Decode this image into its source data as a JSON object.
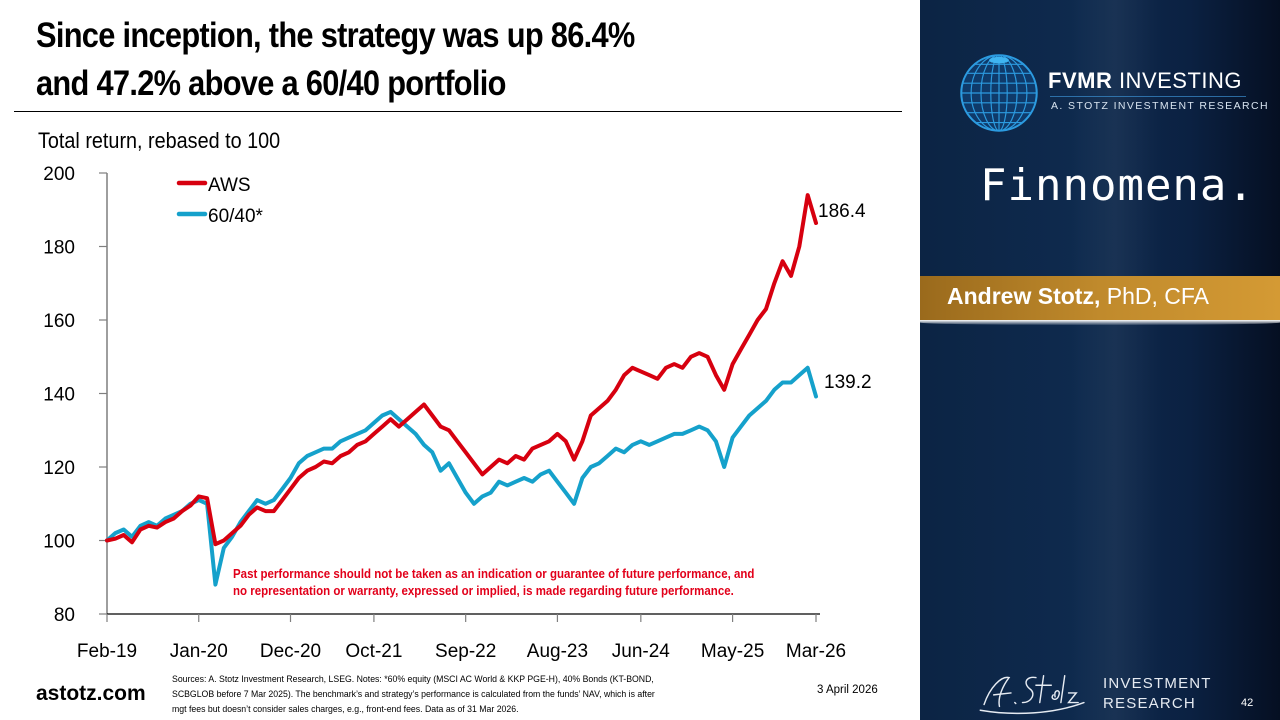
{
  "slide": {
    "title_line1": "Since inception, the strategy was up 86.4%",
    "title_line2": "and 47.2% above a 60/40 portfolio",
    "subtitle": "Total return, rebased to 100",
    "disclaimer_line1": "Past performance should not be taken as an indication or guarantee of future performance, and",
    "disclaimer_line2": "no representation or warranty, expressed or implied, is made regarding future performance.",
    "footer_url": "astotz.com",
    "footer_sources_line1": "Sources: A. Stotz Investment Research, LSEG. Notes: *60% equity (MSCI AC World & KKP PGE-H), 40% Bonds (KT-BOND,",
    "footer_sources_line2": "SCBGLOB before 7 Mar 2025). The benchmark’s and strategy’s performance is calculated from the funds’ NAV, which is after",
    "footer_sources_line3": "mgt fees but doesn’t consider sales charges, e.g., front-end fees. Data as of 31 Mar 2026.",
    "date": "3 April 2026",
    "page_number": "42"
  },
  "sidebar": {
    "brand_bold": "FVMR",
    "brand_rest": " INVESTING",
    "brand_tagline": "A. STOTZ INVESTMENT RESEARCH",
    "partner": "Finnomena.",
    "presenter_name": "Andrew Stotz,",
    "presenter_credentials": " PhD, CFA",
    "footer_line1": "INVESTMENT",
    "footer_line2": "RESEARCH",
    "band_color": "#c08a2c",
    "bg_color": "#0c2444"
  },
  "chart_data": {
    "type": "line",
    "title": "Since inception, the strategy was up 86.4% and 47.2% above a 60/40 portfolio",
    "ylabel": "Total return, rebased to 100",
    "xlabel": "",
    "ylim": [
      80,
      200
    ],
    "yticks": [
      80,
      100,
      120,
      140,
      160,
      180,
      200
    ],
    "xtick_labels": [
      "Feb-19",
      "Jan-20",
      "Dec-20",
      "Oct-21",
      "Sep-22",
      "Aug-23",
      "Jun-24",
      "May-25",
      "Mar-26"
    ],
    "xtick_month_index": [
      0,
      11,
      22,
      32,
      43,
      54,
      64,
      75,
      85
    ],
    "grid": false,
    "legend_position": "top-left",
    "frequency": "monthly, Feb-2019 to Mar-2026 (approximate readings)",
    "series": [
      {
        "name": "AWS",
        "color": "#d7000f",
        "end_label": "186.4",
        "values": [
          100,
          100.5,
          101.5,
          99.5,
          103,
          104,
          103.5,
          105,
          106,
          108,
          109.5,
          112,
          111.5,
          99,
          100,
          102,
          104,
          107,
          109,
          108,
          108,
          111,
          114,
          117,
          119,
          120,
          121.5,
          121,
          123,
          124,
          126,
          127,
          129,
          131,
          133,
          131,
          133,
          135,
          137,
          134,
          131,
          130,
          127,
          124,
          121,
          118,
          120,
          122,
          121,
          123,
          122,
          125,
          126,
          127,
          129,
          127,
          122,
          127,
          134,
          136,
          138,
          141,
          145,
          147,
          146,
          145,
          144,
          147,
          148,
          147,
          150,
          151,
          150,
          145,
          141,
          148,
          152,
          156,
          160,
          163,
          170,
          176,
          172,
          180,
          194,
          186.4
        ]
      },
      {
        "name": "60/40*",
        "color": "#15a1cb",
        "end_label": "139.2",
        "values": [
          100,
          102,
          103,
          101,
          104,
          105,
          104,
          106,
          107,
          108,
          110,
          111,
          110,
          88,
          98,
          101,
          105,
          108,
          111,
          110,
          111,
          114,
          117,
          121,
          123,
          124,
          125,
          125,
          127,
          128,
          129,
          130,
          132,
          134,
          135,
          133,
          131,
          129,
          126,
          124,
          119,
          121,
          117,
          113,
          110,
          112,
          113,
          116,
          115,
          116,
          117,
          116,
          118,
          119,
          116,
          113,
          110,
          117,
          120,
          121,
          123,
          125,
          124,
          126,
          127,
          126,
          127,
          128,
          129,
          129,
          130,
          131,
          130,
          127,
          120,
          128,
          131,
          134,
          136,
          138,
          141,
          143,
          143,
          145,
          147,
          139.2
        ]
      }
    ]
  }
}
